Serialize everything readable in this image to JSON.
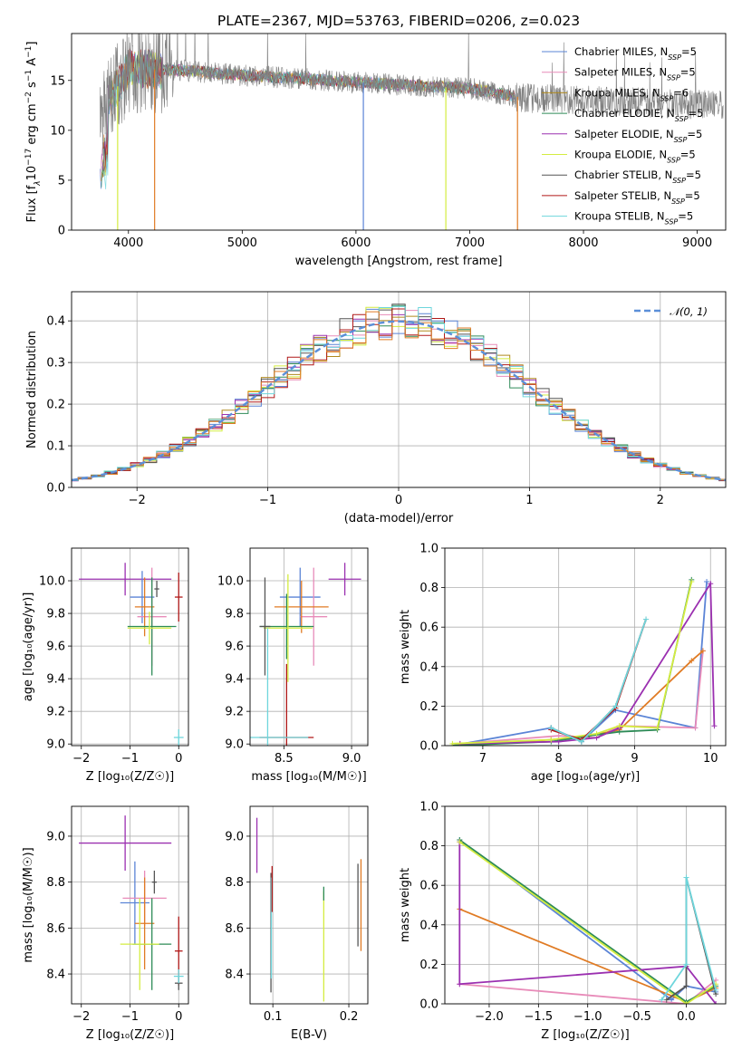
{
  "title": "PLATE=2367, MJD=53763, FIBERID=0206, z=0.023",
  "colors": {
    "Chabrier MILES": "#5b84d6",
    "Salpeter MILES": "#e88bb9",
    "Kroupa MILES": "#b08a1e",
    "Chabrier ELODIE": "#2e8b57",
    "Salpeter ELODIE": "#9b30b0",
    "Kroupa ELODIE": "#d4ec40",
    "Chabrier STELIB": "#555555",
    "Salpeter STELIB": "#b01818",
    "Kroupa STELIB": "#6ed6dc",
    "orange": "#e07b24",
    "gaussian": "#5b8fd8"
  },
  "chart_data": [
    {
      "id": "spectrum",
      "type": "line",
      "xlabel": "wavelength [Angstrom, rest frame]",
      "ylabel_parts": [
        "Flux [f",
        "λ",
        "10",
        "−17",
        " erg cm",
        "−2",
        " s",
        "−1",
        " A",
        "−1",
        "]"
      ],
      "xlim": [
        3500,
        9250
      ],
      "ylim": [
        0,
        19.7
      ],
      "xticks": [
        4000,
        5000,
        6000,
        7000,
        8000,
        9000
      ],
      "yticks": [
        0,
        5,
        10,
        15
      ],
      "grid": false,
      "legend_position": "top-right",
      "legend": [
        {
          "name": "Chabrier MILES",
          "nssp": "5"
        },
        {
          "name": "Salpeter MILES",
          "nssp": "5"
        },
        {
          "name": "Kroupa MILES",
          "nssp": "6"
        },
        {
          "name": "Chabrier ELODIE",
          "nssp": "5"
        },
        {
          "name": "Salpeter ELODIE",
          "nssp": "5"
        },
        {
          "name": "Kroupa ELODIE",
          "nssp": "5"
        },
        {
          "name": "Chabrier STELIB",
          "nssp": "5"
        },
        {
          "name": "Salpeter STELIB",
          "nssp": "5"
        },
        {
          "name": "Kroupa STELIB",
          "nssp": "5"
        }
      ],
      "data_trend": {
        "x": [
          3750,
          4000,
          4500,
          5000,
          5500,
          6000,
          6500,
          7000,
          7500,
          8000,
          8500,
          9000,
          9200
        ],
        "y": [
          11.5,
          16.2,
          16.0,
          15.5,
          15.2,
          14.8,
          14.5,
          14.2,
          13.2,
          13.0,
          12.8,
          12.6,
          12.5
        ]
      },
      "model_range": [
        3750,
        7400
      ],
      "model_dips": [
        3905,
        4230,
        6065,
        6790,
        7420
      ]
    },
    {
      "id": "residuals",
      "type": "area",
      "xlabel": "(data-model)/error",
      "ylabel": "Normed distribution",
      "xlim": [
        -2.5,
        2.5
      ],
      "ylim": [
        0,
        0.47
      ],
      "xticks": [
        -2,
        -1,
        0,
        1,
        2
      ],
      "yticks": [
        0.0,
        0.1,
        0.2,
        0.3,
        0.4
      ],
      "grid": true,
      "legend_position": "top-right",
      "legend_label": "𝒩(0, 1)"
    },
    {
      "id": "age-vs-Z",
      "type": "scatter",
      "xlabel": "Z [log₁₀(Z/Z☉)]",
      "ylabel": "age  [log₁₀(age/yr)]",
      "xlim": [
        -2.2,
        0.2
      ],
      "ylim": [
        8.99,
        10.2
      ],
      "xticks": [
        -2,
        -1,
        0
      ],
      "yticks": [
        9.0,
        9.2,
        9.4,
        9.6,
        9.8,
        10.0
      ],
      "grid": true,
      "points": [
        {
          "x": -1.1,
          "xerr": 0.95,
          "y": 10.01,
          "yerr": 0.1,
          "c": "Salpeter ELODIE"
        },
        {
          "x": -0.75,
          "xerr": 0.25,
          "y": 9.9,
          "yerr": 0.16,
          "c": "Chabrier MILES"
        },
        {
          "x": -0.55,
          "xerr": 0.3,
          "y": 9.78,
          "yerr": 0.3,
          "c": "Salpeter MILES"
        },
        {
          "x": -0.7,
          "xerr": 0.2,
          "y": 9.84,
          "yerr": 0.18,
          "c": "orange"
        },
        {
          "x": -0.45,
          "xerr": 0.05,
          "y": 9.95,
          "yerr": 0.05,
          "c": "Chabrier STELIB"
        },
        {
          "x": -0.55,
          "xerr": 0.5,
          "y": 9.72,
          "yerr": 0.3,
          "c": "Chabrier ELODIE"
        },
        {
          "x": -0.6,
          "xerr": 0.45,
          "y": 9.71,
          "yerr": 0.1,
          "c": "Kroupa ELODIE"
        },
        {
          "x": 0.0,
          "xerr": 0.08,
          "y": 9.9,
          "yerr": 0.15,
          "c": "Salpeter STELIB"
        },
        {
          "x": 0.0,
          "xerr": 0.1,
          "y": 9.04,
          "yerr": 0.05,
          "c": "Kroupa STELIB"
        }
      ]
    },
    {
      "id": "age-vs-mass",
      "type": "scatter",
      "xlabel": "mass [log₁₀(M/M☉)]",
      "ylabel": "",
      "xlim": [
        8.25,
        9.12
      ],
      "ylim": [
        8.99,
        10.2
      ],
      "xticks": [
        8.5,
        9.0
      ],
      "yticks": [
        9.0,
        9.2,
        9.4,
        9.6,
        9.8,
        10.0
      ],
      "grid": true,
      "points": [
        {
          "x": 8.95,
          "xerr": 0.12,
          "y": 10.01,
          "yerr": 0.1,
          "c": "Salpeter ELODIE"
        },
        {
          "x": 8.62,
          "xerr": 0.15,
          "y": 9.9,
          "yerr": 0.18,
          "c": "Chabrier MILES"
        },
        {
          "x": 8.72,
          "xerr": 0.1,
          "y": 9.78,
          "yerr": 0.3,
          "c": "Salpeter MILES"
        },
        {
          "x": 8.63,
          "xerr": 0.2,
          "y": 9.84,
          "yerr": 0.16,
          "c": "orange"
        },
        {
          "x": 8.52,
          "xerr": 0.2,
          "y": 9.72,
          "yerr": 0.2,
          "c": "Chabrier ELODIE"
        },
        {
          "x": 8.53,
          "xerr": 0.18,
          "y": 9.71,
          "yerr": 0.33,
          "c": "Kroupa ELODIE"
        },
        {
          "x": 8.36,
          "xerr": 0.04,
          "y": 9.72,
          "yerr": 0.3,
          "c": "Chabrier STELIB"
        },
        {
          "x": 8.52,
          "xerr": 0.2,
          "y": 9.04,
          "yerr": 0.45,
          "c": "Salpeter STELIB"
        },
        {
          "x": 8.38,
          "xerr": 0.3,
          "y": 9.04,
          "yerr": 0.67,
          "c": "Kroupa STELIB"
        }
      ]
    },
    {
      "id": "mass-weight-vs-age",
      "type": "line",
      "xlabel": "age  [log₁₀(age/yr)]",
      "ylabel": "mass weight",
      "xlim": [
        6.5,
        10.2
      ],
      "ylim": [
        0,
        1.0
      ],
      "xticks": [
        7,
        8,
        9,
        10
      ],
      "yticks": [
        0.0,
        0.2,
        0.4,
        0.6,
        0.8,
        1.0
      ],
      "grid": true,
      "series": [
        {
          "c": "Chabrier MILES",
          "x": [
            6.6,
            7.9,
            8.3,
            8.75,
            9.8,
            9.95
          ],
          "y": [
            0.0,
            0.09,
            0.02,
            0.18,
            0.09,
            0.83
          ]
        },
        {
          "c": "Salpeter MILES",
          "x": [
            6.7,
            8.0,
            8.5,
            8.8,
            9.8,
            9.9
          ],
          "y": [
            0.01,
            0.05,
            0.04,
            0.1,
            0.09,
            0.48
          ]
        },
        {
          "c": "orange",
          "x": [
            6.6,
            7.9,
            8.4,
            8.8,
            9.75,
            9.9
          ],
          "y": [
            0.0,
            0.03,
            0.05,
            0.08,
            0.43,
            0.48
          ]
        },
        {
          "c": "Chabrier ELODIE",
          "x": [
            6.6,
            7.9,
            8.4,
            8.8,
            9.3,
            9.75
          ],
          "y": [
            0.0,
            0.02,
            0.05,
            0.07,
            0.08,
            0.84
          ]
        },
        {
          "c": "Salpeter ELODIE",
          "x": [
            6.7,
            8.0,
            8.5,
            8.8,
            10.0,
            10.05
          ],
          "y": [
            0.01,
            0.02,
            0.04,
            0.09,
            0.82,
            0.1
          ]
        },
        {
          "c": "Kroupa ELODIE",
          "x": [
            6.6,
            7.9,
            8.5,
            8.8,
            9.3,
            9.75
          ],
          "y": [
            0.01,
            0.03,
            0.06,
            0.1,
            0.09,
            0.83
          ]
        },
        {
          "c": "Chabrier STELIB",
          "x": [
            7.9,
            8.3,
            8.75,
            9.15
          ],
          "y": [
            0.09,
            0.02,
            0.2,
            0.64
          ]
        },
        {
          "c": "Salpeter STELIB",
          "x": [
            7.9,
            8.3,
            8.75,
            9.15
          ],
          "y": [
            0.08,
            0.03,
            0.19,
            0.64
          ]
        },
        {
          "c": "Kroupa STELIB",
          "x": [
            7.9,
            8.3,
            8.75,
            9.15
          ],
          "y": [
            0.09,
            0.02,
            0.2,
            0.64
          ]
        }
      ]
    },
    {
      "id": "mass-vs-Z",
      "type": "scatter",
      "xlabel": "Z [log₁₀(Z/Z☉)]",
      "ylabel": "mass [log₁₀(M/M☉)]",
      "xlim": [
        -2.2,
        0.2
      ],
      "ylim": [
        8.27,
        9.13
      ],
      "xticks": [
        -2,
        -1,
        0
      ],
      "yticks": [
        8.4,
        8.6,
        8.8,
        9.0
      ],
      "grid": true,
      "points": [
        {
          "x": -1.1,
          "xerr": 0.95,
          "y": 8.97,
          "yerr": 0.12,
          "c": "Salpeter ELODIE"
        },
        {
          "x": -0.9,
          "xerr": 0.3,
          "y": 8.71,
          "yerr": 0.18,
          "c": "Chabrier MILES"
        },
        {
          "x": -0.7,
          "xerr": 0.45,
          "y": 8.73,
          "yerr": 0.12,
          "c": "Salpeter MILES"
        },
        {
          "x": -0.7,
          "xerr": 0.2,
          "y": 8.62,
          "yerr": 0.2,
          "c": "orange"
        },
        {
          "x": -0.5,
          "xerr": 0.05,
          "y": 8.8,
          "yerr": 0.05,
          "c": "Chabrier STELIB"
        },
        {
          "x": -0.55,
          "xerr": 0.4,
          "y": 8.53,
          "yerr": 0.2,
          "c": "Chabrier ELODIE"
        },
        {
          "x": -0.8,
          "xerr": 0.4,
          "y": 8.53,
          "yerr": 0.2,
          "c": "Kroupa ELODIE"
        },
        {
          "x": 0.0,
          "xerr": 0.08,
          "y": 8.5,
          "yerr": 0.15,
          "c": "Salpeter STELIB"
        },
        {
          "x": 0.0,
          "xerr": 0.08,
          "y": 8.36,
          "yerr": 0.03,
          "c": "Chabrier STELIB"
        },
        {
          "x": 0.0,
          "xerr": 0.1,
          "y": 8.39,
          "yerr": 0.03,
          "c": "Kroupa STELIB"
        }
      ]
    },
    {
      "id": "mass-vs-ebv",
      "type": "scatter",
      "xlabel": "E(B-V)",
      "ylabel": "",
      "xlim": [
        0.07,
        0.225
      ],
      "ylim": [
        8.27,
        9.13
      ],
      "xticks": [
        0.1,
        0.2
      ],
      "yticks": [
        8.4,
        8.6,
        8.8,
        9.0
      ],
      "grid": true,
      "points": [
        {
          "x": 0.079,
          "xerr": 0.0,
          "y": 8.96,
          "yerr": 0.12,
          "c": "Salpeter ELODIE"
        },
        {
          "x": 0.0975,
          "xerr": 0.0,
          "y": 8.58,
          "yerr": 0.26,
          "c": "Chabrier STELIB"
        },
        {
          "x": 0.098,
          "xerr": 0.0,
          "y": 8.6,
          "yerr": 0.22,
          "c": "Kroupa STELIB"
        },
        {
          "x": 0.099,
          "xerr": 0.0,
          "y": 8.77,
          "yerr": 0.1,
          "c": "Salpeter STELIB"
        },
        {
          "x": 0.167,
          "xerr": 0.0,
          "y": 8.52,
          "yerr": 0.24,
          "c": "Kroupa ELODIE"
        },
        {
          "x": 0.167,
          "xerr": 0.0,
          "y": 8.75,
          "yerr": 0.03,
          "c": "Chabrier ELODIE"
        },
        {
          "x": 0.212,
          "xerr": 0.0,
          "y": 8.7,
          "yerr": 0.18,
          "c": "Chabrier STELIB"
        },
        {
          "x": 0.216,
          "xerr": 0.0,
          "y": 8.7,
          "yerr": 0.2,
          "c": "orange"
        }
      ]
    },
    {
      "id": "mass-weight-vs-Z",
      "type": "line",
      "xlabel": "Z [log₁₀(Z/Z☉)]",
      "ylabel": "mass weight",
      "xlim": [
        -2.45,
        0.4
      ],
      "ylim": [
        0,
        1.0
      ],
      "xticks": [
        -2.0,
        -1.5,
        -1.0,
        -0.5,
        0.0
      ],
      "yticks": [
        0.0,
        0.2,
        0.4,
        0.6,
        0.8,
        1.0
      ],
      "grid": true,
      "series": [
        {
          "c": "Chabrier MILES",
          "x": [
            -2.3,
            -0.15,
            0.0,
            0.3
          ],
          "y": [
            0.83,
            0.02,
            0.09,
            0.06
          ]
        },
        {
          "c": "Salpeter MILES",
          "x": [
            -2.3,
            0.0,
            0.3
          ],
          "y": [
            0.1,
            0.0,
            0.12
          ]
        },
        {
          "c": "orange",
          "x": [
            -2.3,
            0.0,
            0.3
          ],
          "y": [
            0.48,
            0.01,
            0.08
          ]
        },
        {
          "c": "Chabrier ELODIE",
          "x": [
            -2.3,
            0.0,
            0.3
          ],
          "y": [
            0.83,
            0.01,
            0.09
          ]
        },
        {
          "c": "Salpeter ELODIE",
          "x": [
            -2.3,
            -2.3,
            0.0,
            0.3
          ],
          "y": [
            0.82,
            0.1,
            0.19,
            0.0
          ]
        },
        {
          "c": "Kroupa ELODIE",
          "x": [
            -2.3,
            0.0,
            0.3
          ],
          "y": [
            0.82,
            0.0,
            0.1
          ]
        },
        {
          "c": "Chabrier STELIB",
          "x": [
            -0.2,
            0.0,
            0.0,
            0.3
          ],
          "y": [
            0.02,
            0.09,
            0.64,
            0.05
          ]
        },
        {
          "c": "Kroupa STELIB",
          "x": [
            -0.25,
            0.0,
            0.0,
            0.3
          ],
          "y": [
            0.02,
            0.2,
            0.64,
            0.07
          ]
        }
      ]
    }
  ]
}
